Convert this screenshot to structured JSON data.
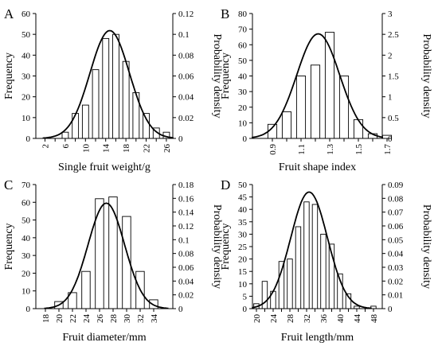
{
  "chart_data": [
    {
      "panel_label": "A",
      "type": "bar",
      "xlabel": "Single fruit weight/g",
      "ylabel": "Frequency",
      "y2label": "Probability density",
      "categories": [
        "2",
        "4",
        "6",
        "8",
        "10",
        "12",
        "14",
        "16",
        "18",
        "20",
        "22",
        "24",
        "26"
      ],
      "x_tick_labels": [
        "2",
        "6",
        "10",
        "14",
        "18",
        "22",
        "26"
      ],
      "values": [
        0,
        0,
        3,
        12,
        16,
        33,
        48,
        50,
        37,
        22,
        12,
        5,
        3
      ],
      "ylim": [
        0,
        60
      ],
      "y_ticks": [
        0,
        10,
        20,
        30,
        40,
        50,
        60
      ],
      "y2lim": [
        0,
        0.12
      ],
      "y2_ticks": [
        "0",
        "0.02",
        "0.04",
        "0.06",
        "0.08",
        "0.1",
        "0.12"
      ],
      "curve": {
        "mean": 14.8,
        "sd": 3.9,
        "peak": 51.8
      }
    },
    {
      "panel_label": "B",
      "type": "bar",
      "xlabel": "Fruit shape index",
      "ylabel": "Frequency",
      "y2label": "Probability density",
      "categories": [
        "0.9",
        "1.0",
        "1.1",
        "1.2",
        "1.3",
        "1.4",
        "1.5",
        "1.6",
        "1.7"
      ],
      "x_tick_labels": [
        "0.9",
        "1.1",
        "1.3",
        "1.5",
        "1.7"
      ],
      "values": [
        9,
        17,
        40,
        47,
        68,
        40,
        12,
        3,
        2
      ],
      "ylim": [
        0,
        80
      ],
      "y_ticks": [
        0,
        10,
        20,
        30,
        40,
        50,
        60,
        70,
        80
      ],
      "y2lim": [
        0,
        3
      ],
      "y2_ticks": [
        "0",
        "0.5",
        "1",
        "1.5",
        "2",
        "2.5",
        "3"
      ],
      "curve": {
        "mean": 1.22,
        "sd": 0.15,
        "peak": 67
      }
    },
    {
      "panel_label": "C",
      "type": "bar",
      "xlabel": "Fruit diameter/mm",
      "ylabel": "Frequency",
      "y2label": "Probability density",
      "categories": [
        "18",
        "20",
        "22",
        "24",
        "26",
        "28",
        "30",
        "32",
        "34"
      ],
      "x_tick_labels": [
        "18",
        "20",
        "22",
        "24",
        "26",
        "28",
        "30",
        "32",
        "34"
      ],
      "values": [
        0,
        4,
        9,
        21,
        62,
        63,
        52,
        21,
        5
      ],
      "ylim": [
        0,
        70
      ],
      "y_ticks": [
        0,
        10,
        20,
        30,
        40,
        50,
        60,
        70
      ],
      "y2lim": [
        0,
        0.18
      ],
      "y2_ticks": [
        "0",
        "0.02",
        "0.04",
        "0.06",
        "0.08",
        "0.1",
        "0.12",
        "0.14",
        "0.16",
        "0.18"
      ],
      "curve": {
        "mean": 27.0,
        "sd": 2.7,
        "peak": 59.5
      }
    },
    {
      "panel_label": "D",
      "type": "bar",
      "xlabel": "Fruit length/mm",
      "ylabel": "Frequency",
      "y2label": "Probability density",
      "categories": [
        "20",
        "22",
        "24",
        "26",
        "28",
        "30",
        "32",
        "34",
        "36",
        "38",
        "40",
        "42",
        "44",
        "46",
        "48"
      ],
      "x_tick_labels": [
        "20",
        "24",
        "28",
        "32",
        "36",
        "40",
        "44",
        "48"
      ],
      "values": [
        2,
        11,
        7,
        19,
        20,
        33,
        43,
        42,
        30,
        26,
        14,
        6,
        1,
        0,
        1
      ],
      "ylim": [
        0,
        50
      ],
      "y_ticks": [
        0,
        5,
        10,
        15,
        20,
        25,
        30,
        35,
        40,
        45,
        50
      ],
      "y2lim": [
        0,
        0.09
      ],
      "y2_ticks": [
        "0",
        "0.01",
        "0.02",
        "0.03",
        "0.04",
        "0.05",
        "0.06",
        "0.07",
        "0.08",
        "0.09"
      ],
      "curve": {
        "mean": 32.6,
        "sd": 4.4,
        "peak": 47
      }
    }
  ]
}
